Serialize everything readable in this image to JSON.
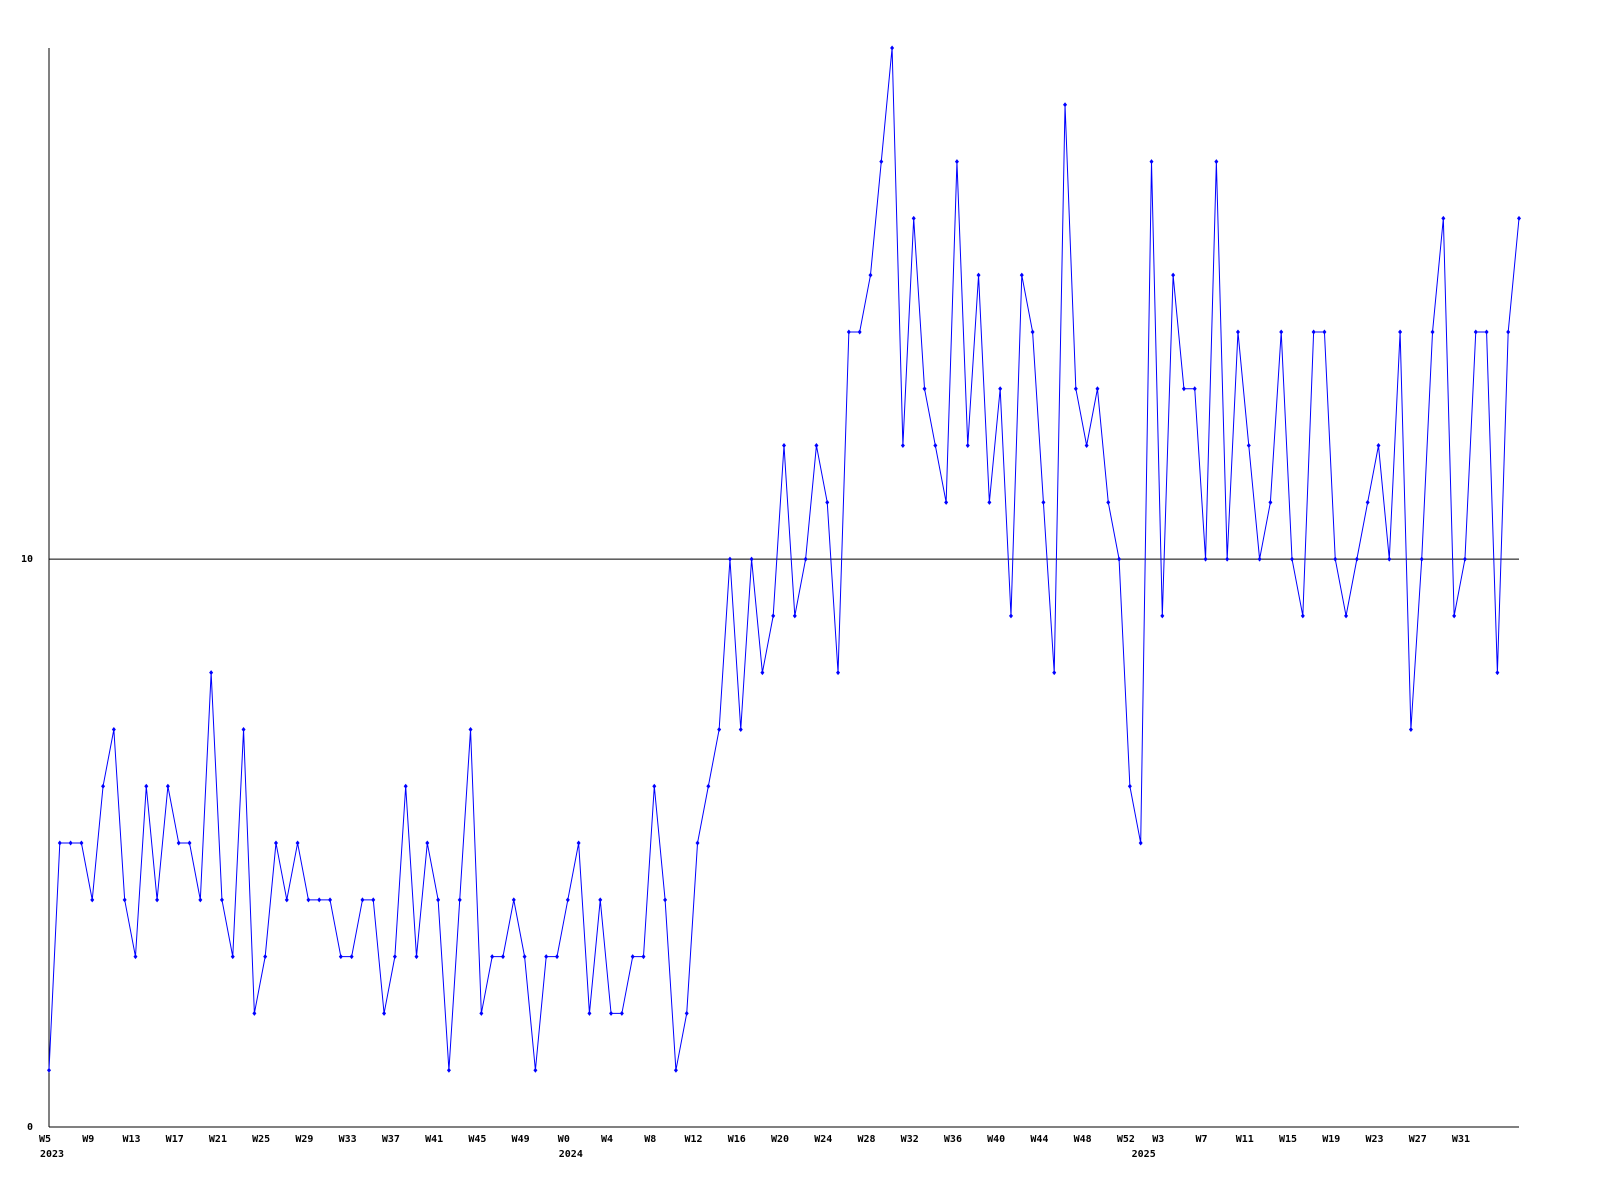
{
  "chart_data": {
    "type": "line",
    "color": "#0000ff",
    "grid": true,
    "ylim": [
      0,
      19
    ],
    "yticks": [
      0,
      10
    ],
    "categories": [
      "W5",
      null,
      null,
      null,
      "W9",
      null,
      null,
      null,
      "W13",
      null,
      null,
      null,
      "W17",
      null,
      null,
      null,
      "W21",
      null,
      null,
      null,
      "W25",
      null,
      null,
      null,
      "W29",
      null,
      null,
      null,
      "W33",
      null,
      null,
      null,
      "W37",
      null,
      null,
      null,
      "W41",
      null,
      null,
      null,
      "W45",
      null,
      null,
      null,
      "W49",
      null,
      null,
      null,
      "W0",
      null,
      null,
      null,
      "W4",
      null,
      null,
      null,
      "W8",
      null,
      null,
      null,
      "W12",
      null,
      null,
      null,
      "W16",
      null,
      null,
      null,
      "W20",
      null,
      null,
      null,
      "W24",
      null,
      null,
      null,
      "W28",
      null,
      null,
      null,
      "W32",
      null,
      null,
      null,
      "W36",
      null,
      null,
      null,
      "W40",
      null,
      null,
      null,
      "W44",
      null,
      null,
      null,
      "W48",
      null,
      null,
      null,
      "W52",
      null,
      null,
      "W3",
      null,
      null,
      null,
      "W7",
      null,
      null,
      null,
      "W11",
      null,
      null,
      null,
      "W15",
      null,
      null,
      null,
      "W19",
      null,
      null,
      null,
      "W23",
      null,
      null,
      null,
      "W27",
      null,
      null,
      null,
      "W31",
      null,
      null,
      null,
      null,
      null
    ],
    "category_years": [
      "2023",
      null,
      null,
      null,
      null,
      null,
      null,
      null,
      null,
      null,
      null,
      null,
      null,
      null,
      null,
      null,
      null,
      null,
      null,
      null,
      null,
      null,
      null,
      null,
      null,
      null,
      null,
      null,
      null,
      null,
      null,
      null,
      null,
      null,
      null,
      null,
      null,
      null,
      null,
      null,
      null,
      null,
      null,
      null,
      null,
      null,
      null,
      null,
      "2024",
      null,
      null,
      null,
      null,
      null,
      null,
      null,
      null,
      null,
      null,
      null,
      null,
      null,
      null,
      null,
      null,
      null,
      null,
      null,
      null,
      null,
      null,
      null,
      null,
      null,
      null,
      null,
      null,
      null,
      null,
      null,
      null,
      null,
      null,
      null,
      null,
      null,
      null,
      null,
      null,
      null,
      null,
      null,
      null,
      null,
      null,
      null,
      null,
      null,
      null,
      null,
      null,
      "2025",
      null,
      null,
      null,
      null,
      null,
      null,
      null,
      null,
      null,
      null,
      null,
      null,
      null,
      null,
      null,
      null,
      null,
      null,
      null,
      null,
      null,
      null,
      null,
      null,
      null,
      null,
      null,
      null,
      null,
      null,
      null,
      null,
      null,
      null,
      null
    ],
    "values": [
      1,
      5,
      5,
      5,
      4,
      6,
      7,
      4,
      3,
      6,
      4,
      6,
      5,
      5,
      4,
      8,
      4,
      3,
      7,
      2,
      3,
      5,
      4,
      5,
      4,
      4,
      4,
      3,
      3,
      4,
      4,
      2,
      3,
      6,
      3,
      5,
      4,
      1,
      4,
      7,
      2,
      3,
      3,
      4,
      3,
      1,
      3,
      3,
      4,
      5,
      2,
      4,
      2,
      2,
      3,
      3,
      6,
      4,
      1,
      2,
      5,
      6,
      7,
      10,
      7,
      10,
      8,
      9,
      12,
      9,
      10,
      12,
      11,
      8,
      14,
      14,
      15,
      17,
      19,
      12,
      16,
      13,
      12,
      11,
      17,
      12,
      15,
      11,
      13,
      9,
      15,
      14,
      11,
      8,
      18,
      13,
      12,
      13,
      11,
      10,
      6,
      5,
      17,
      9,
      15,
      13,
      13,
      10,
      17,
      10,
      14,
      12,
      10,
      11,
      14,
      10,
      9,
      14,
      14,
      10,
      9,
      10,
      11,
      12,
      10,
      14,
      7,
      10,
      14,
      16,
      9,
      10,
      14,
      14,
      8,
      14,
      16
    ]
  }
}
